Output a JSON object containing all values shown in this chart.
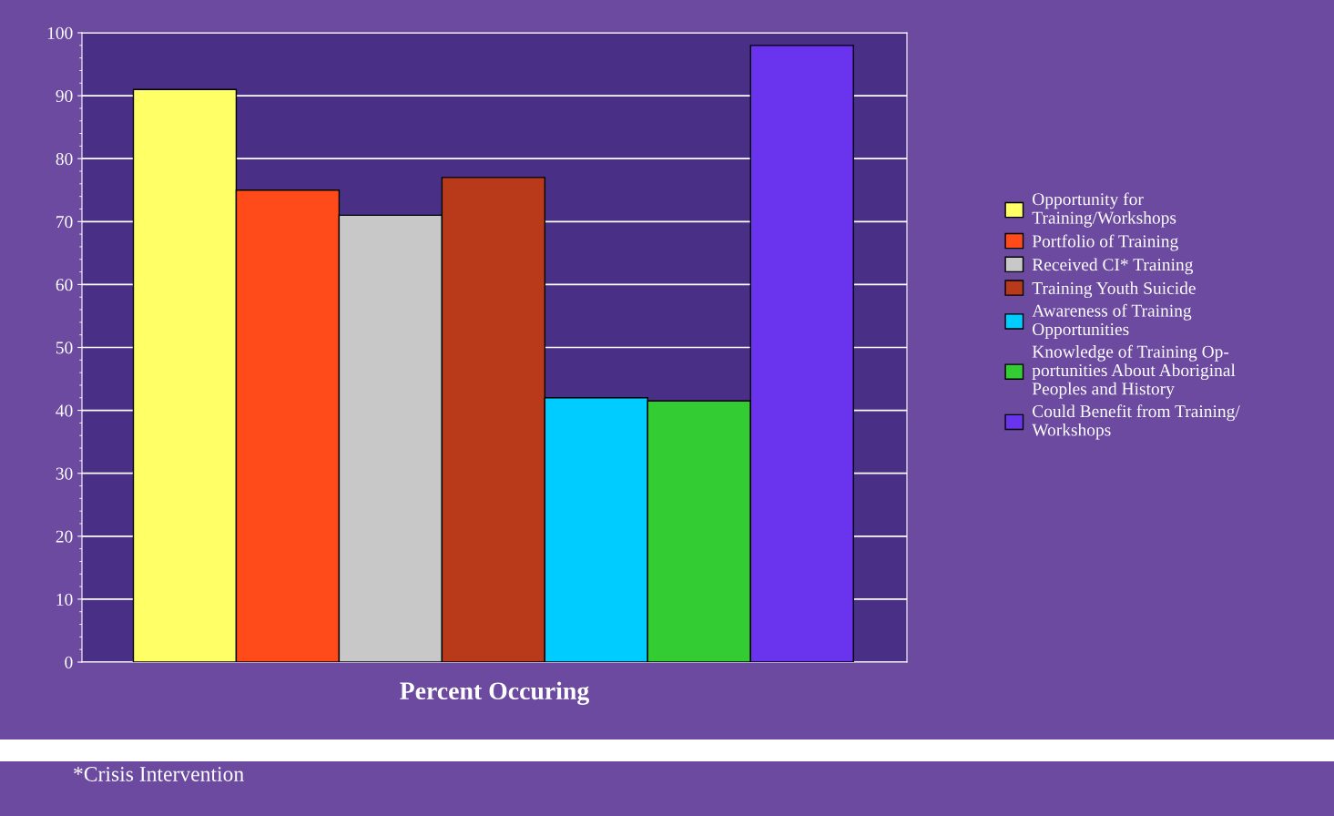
{
  "chart_data": {
    "type": "bar",
    "xlabel": "Percent Occuring",
    "categories": [
      null
    ],
    "series": [
      {
        "name": "Opportunity for\nTraining/Workshops",
        "color": "#ffff66",
        "values": [
          91
        ]
      },
      {
        "name": "Portfolio of Training",
        "color": "#ff4a1a",
        "values": [
          75
        ]
      },
      {
        "name": "Received CI* Training",
        "color": "#c8c8c8",
        "values": [
          71
        ]
      },
      {
        "name": "Training Youth Suicide",
        "color": "#b83a1a",
        "values": [
          77
        ]
      },
      {
        "name": "Awareness of Training\nOpportunities",
        "color": "#00ccff",
        "values": [
          42
        ]
      },
      {
        "name": "Knowledge of Training Op-\nportunities About Aboriginal\nPeoples and History",
        "color": "#33cc33",
        "values": [
          41.5
        ]
      },
      {
        "name": "Could Benefit from Training/\nWorkshops",
        "color": "#6a33ee",
        "values": [
          98
        ]
      }
    ],
    "ylim": [
      0,
      100
    ],
    "yticks": [
      0,
      10,
      20,
      30,
      40,
      50,
      60,
      70,
      80,
      90,
      100
    ],
    "grid": "y",
    "legend": "right",
    "annotations": [
      "*Crisis Intervention"
    ]
  }
}
